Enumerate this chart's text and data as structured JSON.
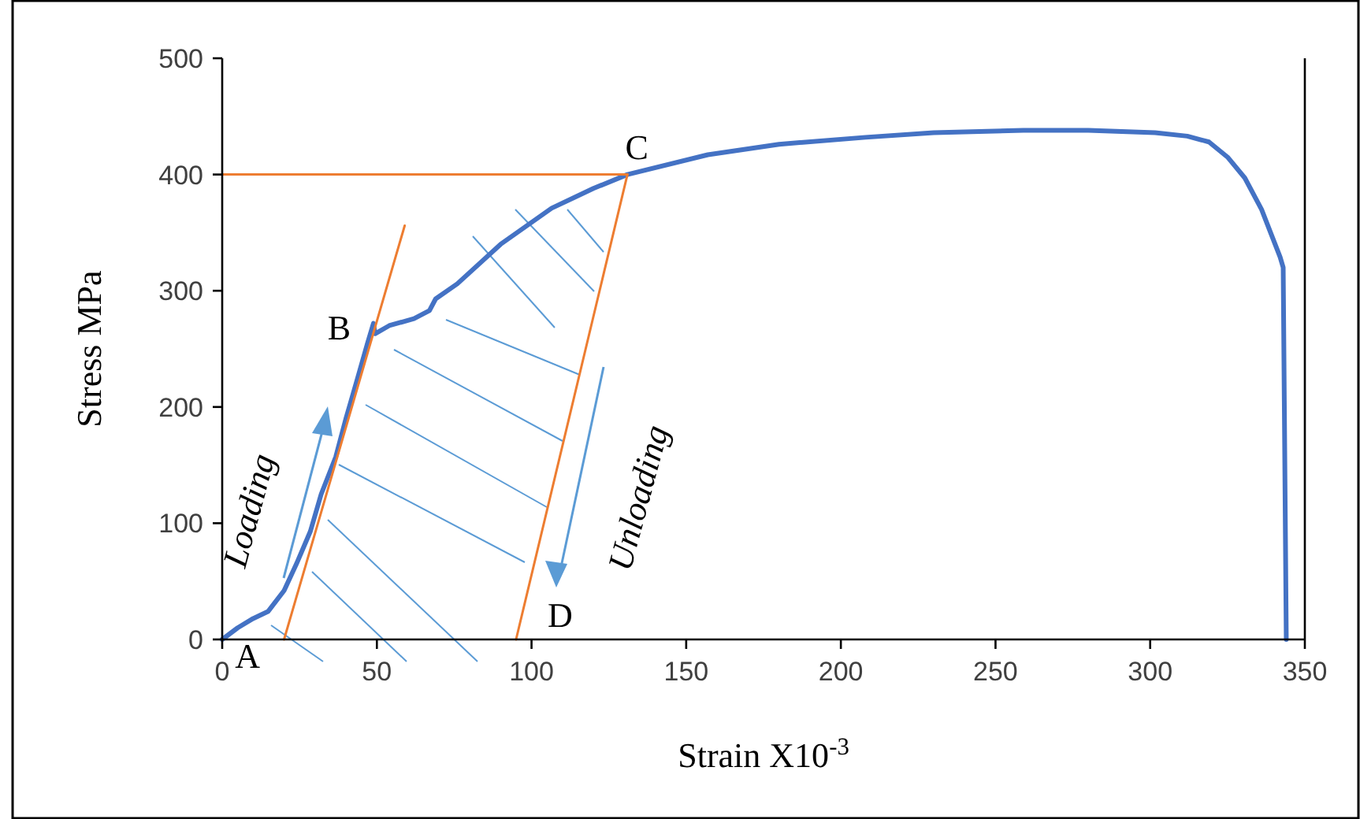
{
  "chart_data": {
    "type": "line",
    "xlabel": "Strain X10$^{-3}$",
    "ylabel": "Stress MPa",
    "xlim": [
      0,
      350
    ],
    "xticks": [
      0,
      50,
      100,
      150,
      200,
      250,
      300,
      350
    ],
    "ylim": [
      0,
      500
    ],
    "yticks": [
      0,
      100,
      200,
      300,
      400,
      500
    ],
    "grid": false,
    "line_style": "solid",
    "series": [
      {
        "color": "#4472c4",
        "x": [
          0,
          5,
          10,
          14.8,
          20,
          24,
          28.5,
          32,
          36.7,
          40,
          43.8,
          47,
          48.9,
          49.4,
          54,
          62,
          67,
          69,
          76,
          90,
          106.5,
          120,
          131,
          157,
          180,
          208,
          230,
          259,
          280,
          301.6,
          312,
          319,
          325,
          330.6,
          336,
          342,
          343,
          344
        ],
        "values": [
          0,
          10,
          18,
          24,
          42,
          65,
          93,
          125,
          157,
          190,
          225,
          255,
          272,
          263,
          270,
          276,
          283,
          293,
          306,
          340,
          371,
          388,
          400,
          417,
          426,
          432,
          436,
          438,
          438,
          436,
          433,
          428,
          415,
          397,
          370,
          329,
          320,
          0
        ]
      },
      {
        "color": "#ed7d31",
        "x": [
          20,
          59
        ],
        "values": [
          0,
          356
        ]
      },
      {
        "color": "#ed7d31",
        "x": [
          95,
          131
        ],
        "values": [
          0,
          400
        ]
      },
      {
        "color": "#ed7d31",
        "x": [
          0,
          131
        ],
        "values": [
          400,
          400
        ]
      }
    ],
    "annotations": [
      {
        "text": "A",
        "x": 0,
        "y": 0
      },
      {
        "text": "B",
        "x": 49,
        "y": 272
      },
      {
        "text": "C",
        "x": 131,
        "y": 400
      },
      {
        "text": "D",
        "x": 95,
        "y": 0
      },
      "Loading",
      "Unloading"
    ]
  }
}
